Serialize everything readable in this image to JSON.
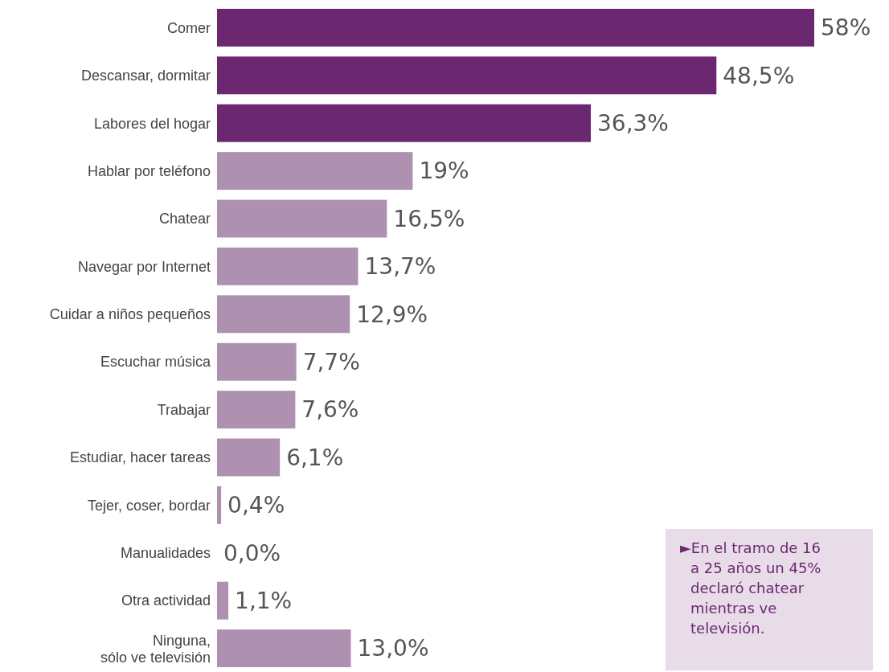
{
  "chart_data": {
    "type": "bar",
    "orientation": "horizontal",
    "categories": [
      "Comer",
      "Descansar, dormitar",
      "Labores del hogar",
      "Hablar por teléfono",
      "Chatear",
      "Navegar por Internet",
      "Cuidar a niños pequeños",
      "Escuchar música",
      "Trabajar",
      "Estudiar, hacer tareas",
      "Tejer, coser, bordar",
      "Manualidades",
      "Otra actividad",
      "Ninguna,\nsólo ve televisión"
    ],
    "values": [
      58,
      48.5,
      36.3,
      19,
      16.5,
      13.7,
      12.9,
      7.7,
      7.6,
      6.1,
      0.4,
      0.0,
      1.1,
      13.0
    ],
    "value_labels": [
      "58%",
      "48,5%",
      "36,3%",
      "19%",
      "16,5%",
      "13,7%",
      "12,9%",
      "7,7%",
      "7,6%",
      "6,1%",
      "0,4%",
      "0,0%",
      "1,1%",
      "13,0%"
    ],
    "colors": [
      "#6b2770",
      "#6b2770",
      "#6b2770",
      "#ae90b0",
      "#ae90b0",
      "#ae90b0",
      "#ae90b0",
      "#ae90b0",
      "#ae90b0",
      "#ae90b0",
      "#ae90b0",
      "#ae90b0",
      "#ae90b0",
      "#ae90b0"
    ],
    "annotations": [
      "►En el tramo de 16 a 25 años un 45% declaró chatear mientras ve televisión."
    ]
  }
}
